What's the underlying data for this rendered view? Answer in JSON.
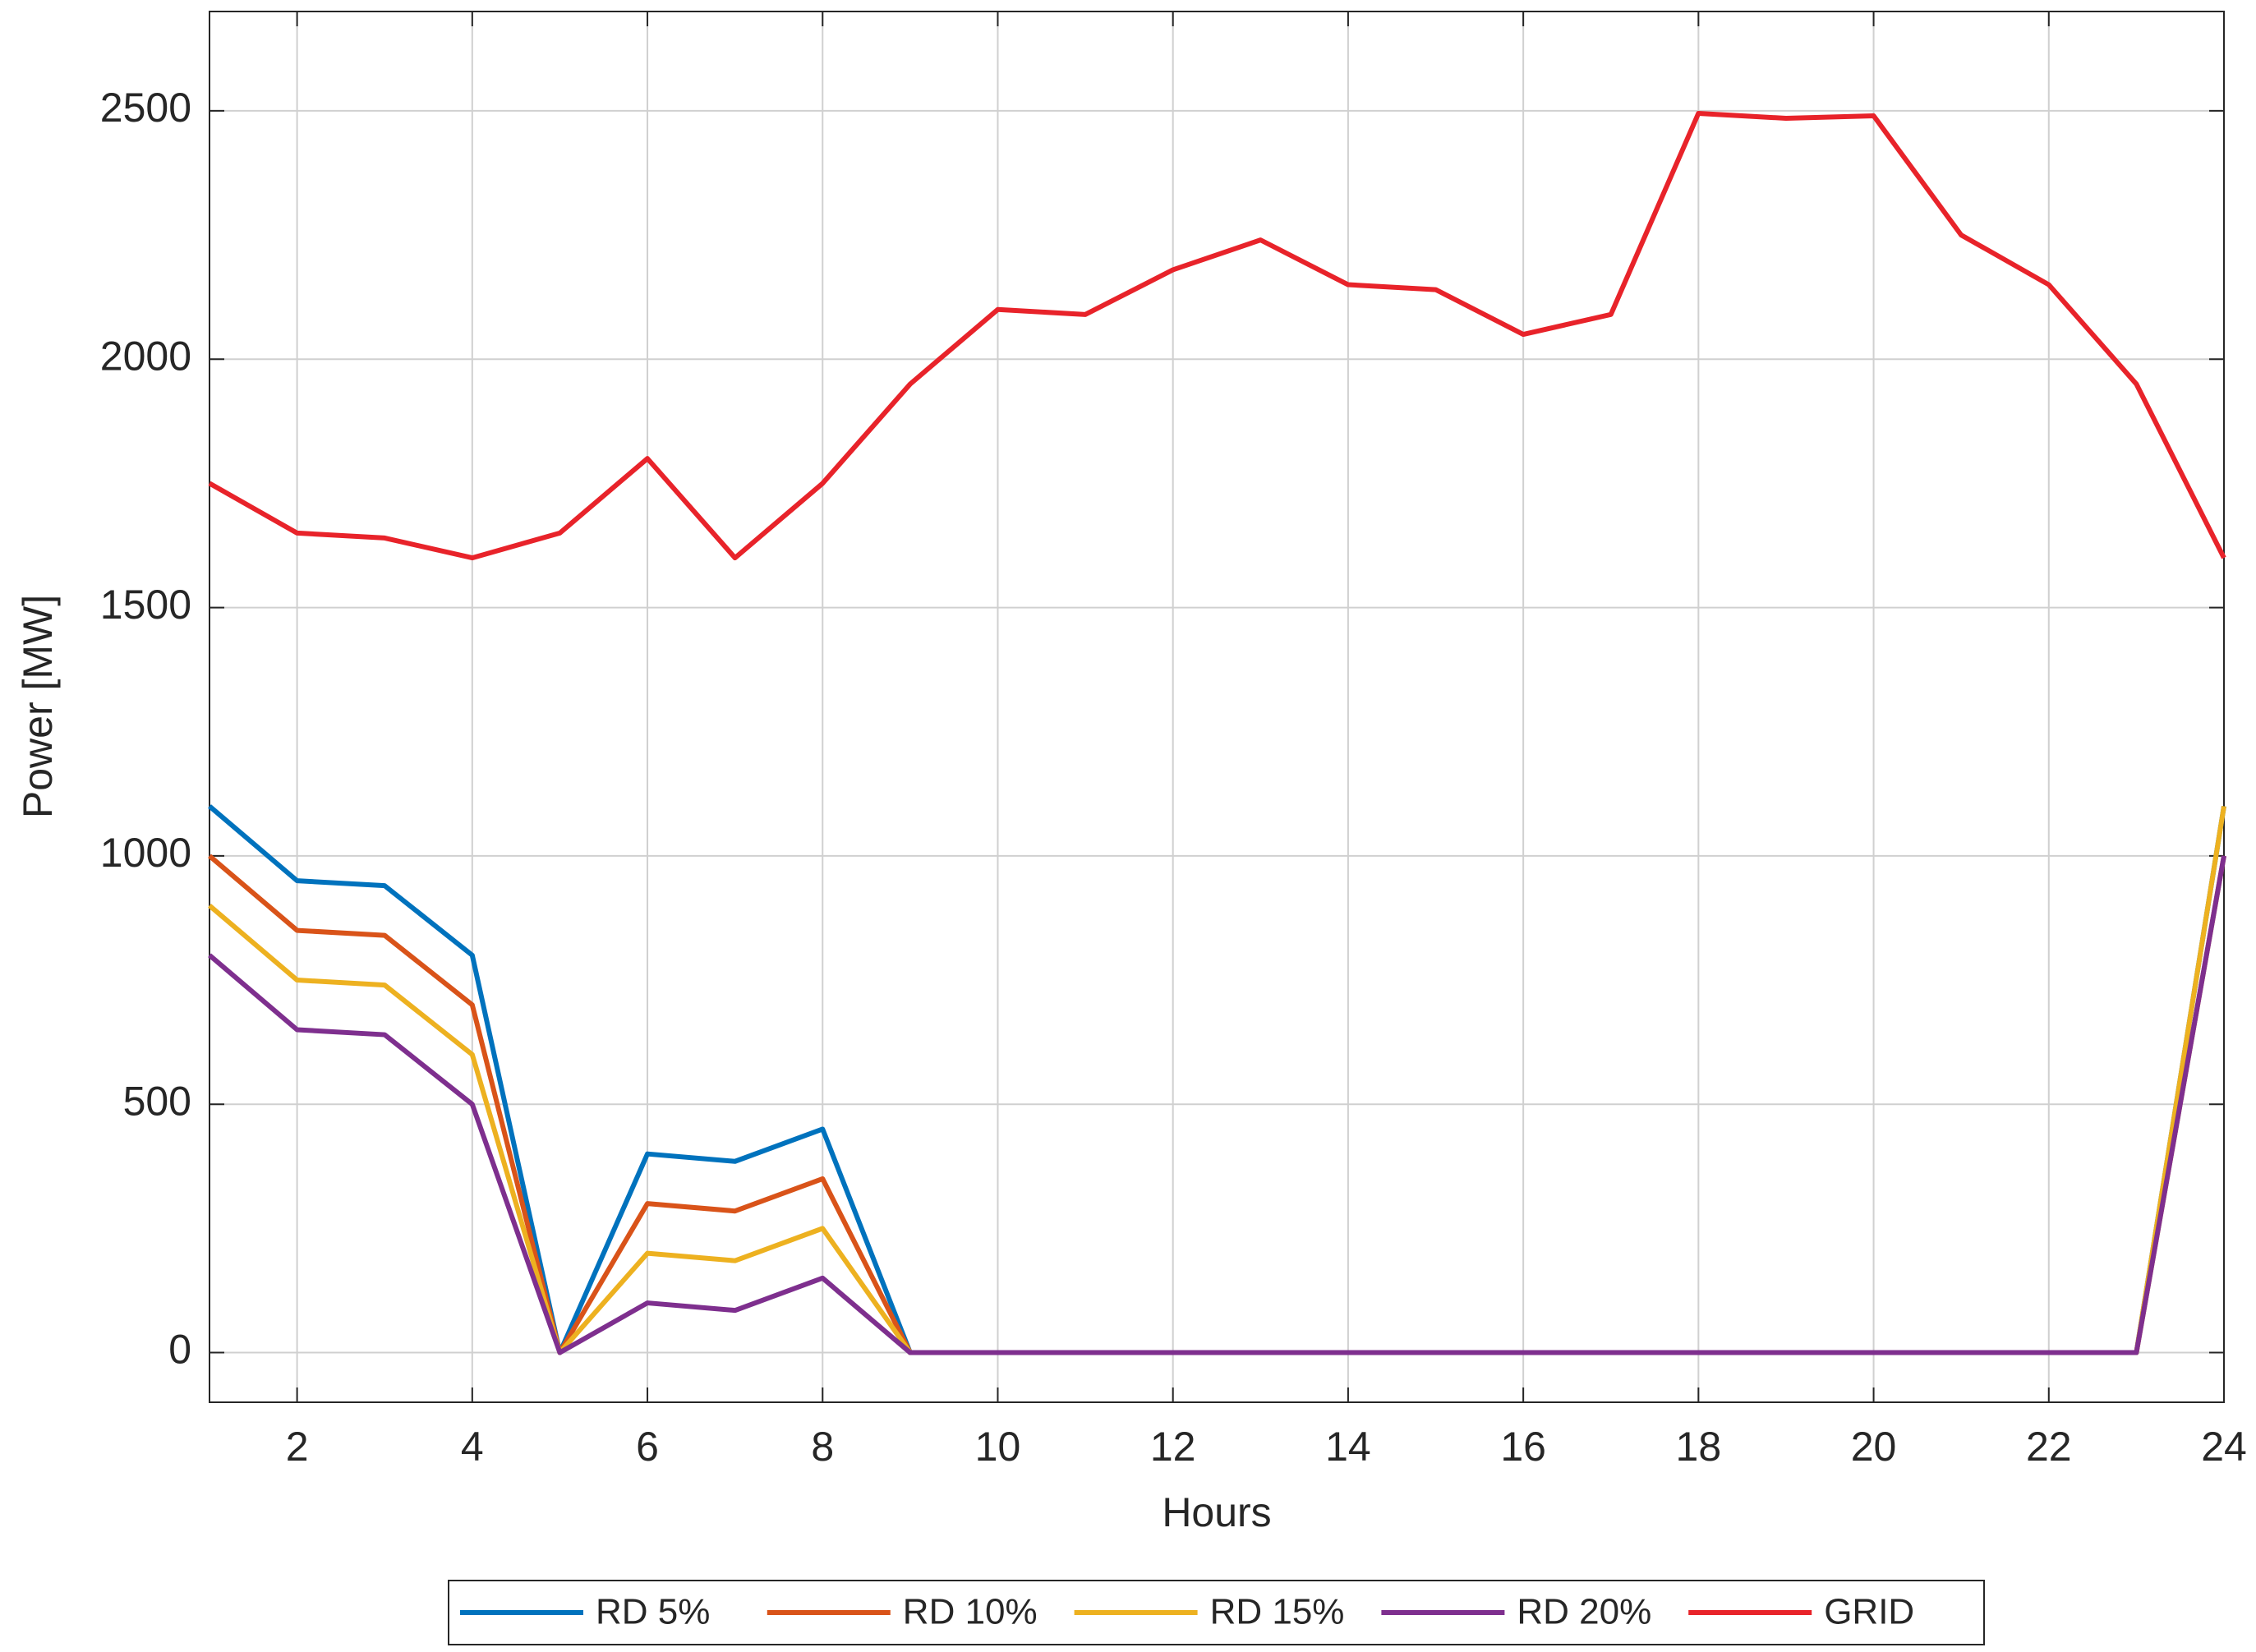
{
  "chart_data": {
    "type": "line",
    "x_label": "Hours",
    "y_label": "Power [MW]",
    "x": [
      1,
      2,
      3,
      4,
      5,
      6,
      7,
      8,
      9,
      10,
      11,
      12,
      13,
      14,
      15,
      16,
      17,
      18,
      19,
      20,
      21,
      22,
      23,
      24
    ],
    "xlim": [
      1,
      24
    ],
    "xticks": [
      2,
      4,
      6,
      8,
      10,
      12,
      14,
      16,
      18,
      20,
      22,
      24
    ],
    "ylim": [
      -100,
      2700
    ],
    "yticks": [
      0,
      500,
      1000,
      1500,
      2000,
      2500
    ],
    "grid": true,
    "legend": "bottom",
    "series": [
      {
        "name": "RD 5%",
        "color": "#0072bd",
        "values": [
          1100,
          950,
          940,
          800,
          0,
          400,
          385,
          450,
          0,
          0,
          0,
          0,
          0,
          0,
          0,
          0,
          0,
          0,
          0,
          0,
          0,
          0,
          0,
          1100
        ]
      },
      {
        "name": "RD 10%",
        "color": "#d95319",
        "values": [
          1000,
          850,
          840,
          700,
          0,
          300,
          285,
          350,
          0,
          0,
          0,
          0,
          0,
          0,
          0,
          0,
          0,
          0,
          0,
          0,
          0,
          0,
          0,
          1000
        ]
      },
      {
        "name": "RD 15%",
        "color": "#edb120",
        "values": [
          900,
          750,
          740,
          600,
          0,
          200,
          185,
          250,
          0,
          0,
          0,
          0,
          0,
          0,
          0,
          0,
          0,
          0,
          0,
          0,
          0,
          0,
          0,
          1100
        ]
      },
      {
        "name": "RD 20%",
        "color": "#7e2f8e",
        "values": [
          800,
          650,
          640,
          500,
          0,
          100,
          85,
          150,
          0,
          0,
          0,
          0,
          0,
          0,
          0,
          0,
          0,
          0,
          0,
          0,
          0,
          0,
          0,
          1000
        ]
      },
      {
        "name": "GRID",
        "color": "#e8232a",
        "values": [
          1750,
          1650,
          1640,
          1600,
          1650,
          1800,
          1600,
          1750,
          1950,
          2100,
          2090,
          2180,
          2240,
          2150,
          2140,
          2050,
          2090,
          2495,
          2485,
          2490,
          2250,
          2150,
          1950,
          1600
        ]
      }
    ]
  }
}
